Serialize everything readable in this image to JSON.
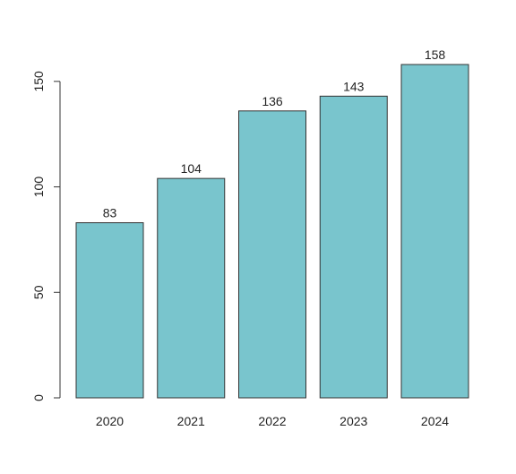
{
  "chart_data": {
    "type": "bar",
    "categories": [
      "2020",
      "2021",
      "2022",
      "2023",
      "2024"
    ],
    "values": [
      83,
      104,
      136,
      143,
      158
    ],
    "ylim": [
      0,
      158
    ],
    "y_ticks": [
      0,
      50,
      100,
      150
    ],
    "bar_color": "#79c5cd",
    "bar_stroke": "#333333",
    "grid": false,
    "legend": "none",
    "title": "",
    "xlabel": "",
    "ylabel": ""
  }
}
